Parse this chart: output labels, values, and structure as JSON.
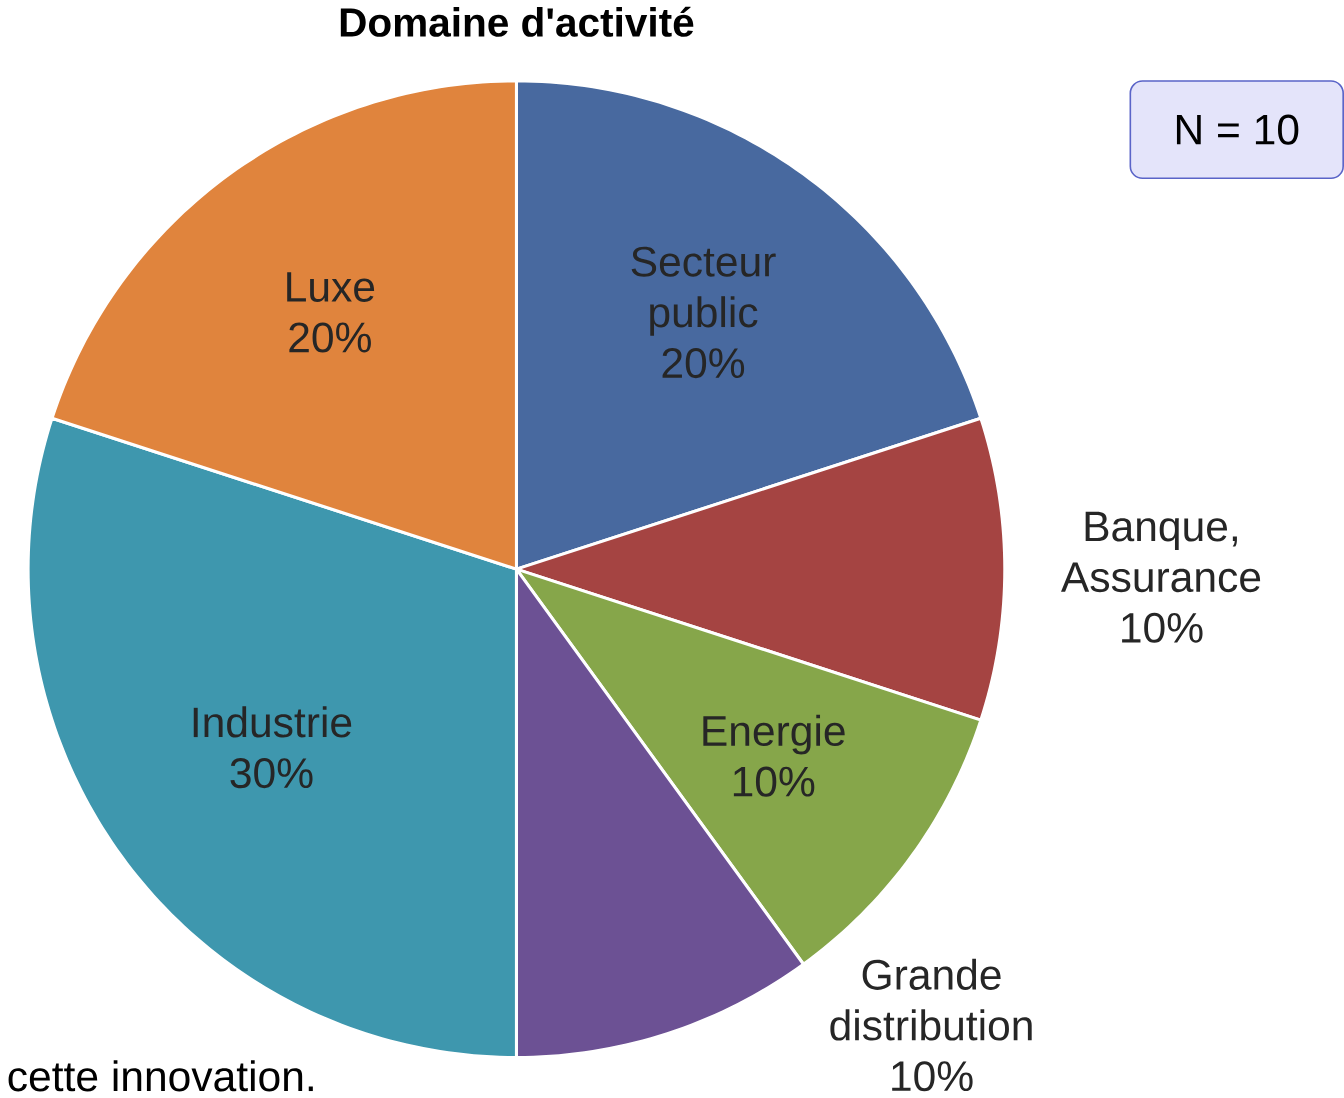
{
  "chart_data": {
    "type": "pie",
    "title": "Domaine d'activité",
    "categories": [
      "Secteur public",
      "Banque, Assurance",
      "Energie",
      "Grande distribution",
      "Industrie",
      "Luxe"
    ],
    "values": [
      20,
      10,
      10,
      10,
      30,
      20
    ],
    "value_labels": [
      "20%",
      "10%",
      "10%",
      "10%",
      "30%",
      "20%"
    ],
    "colors": [
      "#48699f",
      "#a54442",
      "#86a64a",
      "#6c5194",
      "#3e97ae",
      "#e0843d"
    ],
    "annotations": [
      "N = 10",
      "cette innovation."
    ]
  }
}
